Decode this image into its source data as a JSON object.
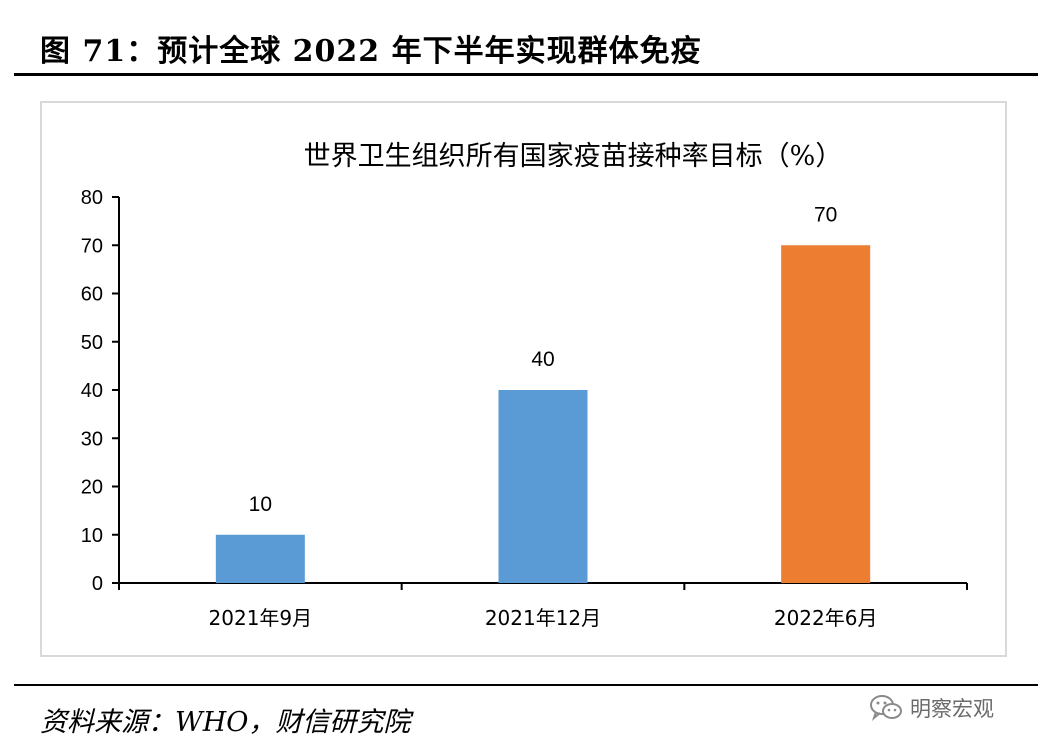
{
  "figure": {
    "title": "图 71：预计全球 2022 年下半年实现群体免疫",
    "source": "资料来源：WHO，财信研究院",
    "watermark": "明察宏观"
  },
  "colors": {
    "blue": "#5b9bd5",
    "orange": "#ed7d31",
    "axis": "#000000",
    "frame": "#d9d9d9"
  },
  "chart_data": {
    "type": "bar",
    "title": "世界卫生组织所有国家疫苗接种率目标（%）",
    "categories": [
      "2021年9月",
      "2021年12月",
      "2022年6月"
    ],
    "values": [
      10,
      40,
      70
    ],
    "data_labels": [
      "10",
      "40",
      "70"
    ],
    "bar_colors": [
      "#5b9bd5",
      "#5b9bd5",
      "#ed7d31"
    ],
    "ylim": [
      0,
      80
    ],
    "yticks": [
      0,
      10,
      20,
      30,
      40,
      50,
      60,
      70,
      80
    ],
    "xlabel": "",
    "ylabel": "",
    "grid": false,
    "legend": "none"
  }
}
